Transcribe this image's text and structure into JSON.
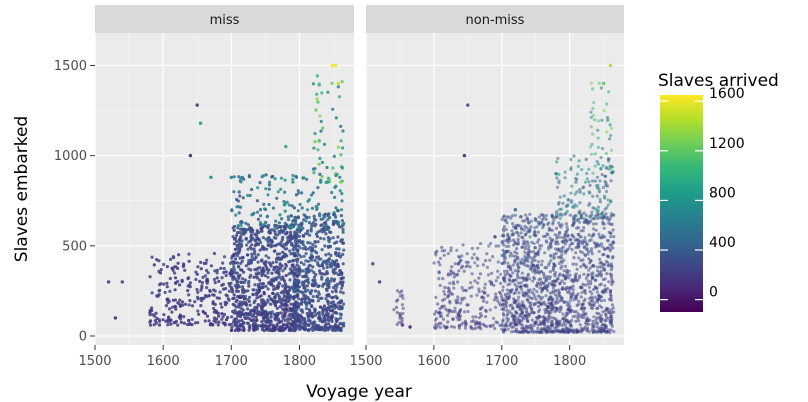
{
  "chart_data": {
    "type": "scatter",
    "xlabel": "Voyage year",
    "ylabel": "Slaves embarked",
    "xlim": [
      1500,
      1880
    ],
    "ylim": [
      -50,
      1680
    ],
    "x_ticks": [
      1500,
      1600,
      1700,
      1800
    ],
    "y_ticks": [
      0,
      500,
      1000,
      1500
    ],
    "x_tick_labels": [
      "1500",
      "1600",
      "1700",
      "1800"
    ],
    "y_tick_labels": [
      "0",
      "500",
      "1000",
      "1500"
    ],
    "grid": true,
    "facets": [
      "miss",
      "non-miss"
    ],
    "color_scale": {
      "title": "Slaves arrived",
      "palette": "viridis",
      "range": [
        -100,
        1650
      ],
      "breaks": [
        0,
        400,
        800,
        1200,
        1600
      ],
      "break_labels": [
        "0",
        "400",
        "800",
        "1200",
        "1600"
      ],
      "colors": [
        "#440154",
        "#482878",
        "#3e4989",
        "#31688e",
        "#26828e",
        "#1f9e89",
        "#35b779",
        "#6ece58",
        "#b5de2b",
        "#fde725"
      ],
      "legend_position": "right"
    },
    "panels": [
      {
        "name": "miss",
        "clusters": [
          {
            "x_range": [
              1580,
              1700
            ],
            "y_range": [
              60,
              460
            ],
            "count": 260,
            "mean_color_value": 190
          },
          {
            "x_range": [
              1700,
              1800
            ],
            "y_range": [
              30,
              620
            ],
            "count": 900,
            "mean_color_value": 230
          },
          {
            "x_range": [
              1790,
              1865
            ],
            "y_range": [
              30,
              680
            ],
            "count": 650,
            "mean_color_value": 280
          },
          {
            "x_range": [
              1700,
              1865
            ],
            "y_range": [
              600,
              900
            ],
            "count": 160,
            "mean_color_value": 560
          },
          {
            "x_range": [
              1820,
              1865
            ],
            "y_range": [
              850,
              1450
            ],
            "count": 60,
            "mean_color_value": 930
          }
        ],
        "points": [
          {
            "x": 1650,
            "y": 1280,
            "c": 150
          },
          {
            "x": 1655,
            "y": 1180,
            "c": 850
          },
          {
            "x": 1640,
            "y": 1000,
            "c": 50
          },
          {
            "x": 1780,
            "y": 1050,
            "c": 950
          },
          {
            "x": 1848,
            "y": 1500,
            "c": 1600
          },
          {
            "x": 1853,
            "y": 1500,
            "c": 1600
          },
          {
            "x": 1857,
            "y": 1400,
            "c": 1500
          },
          {
            "x": 1520,
            "y": 300,
            "c": 200
          },
          {
            "x": 1530,
            "y": 100,
            "c": 100
          },
          {
            "x": 1540,
            "y": 300,
            "c": 250
          },
          {
            "x": 1670,
            "y": 880,
            "c": 700
          },
          {
            "x": 1700,
            "y": 880,
            "c": 650
          }
        ]
      },
      {
        "name": "non-miss",
        "clusters": [
          {
            "x_range": [
              1540,
              1555
            ],
            "y_range": [
              60,
              260
            ],
            "count": 25,
            "mean_color_value": 190
          },
          {
            "x_range": [
              1600,
              1700
            ],
            "y_range": [
              40,
              520
            ],
            "count": 260,
            "mean_color_value": 220
          },
          {
            "x_range": [
              1700,
              1865
            ],
            "y_range": [
              20,
              680
            ],
            "count": 1400,
            "mean_color_value": 240
          },
          {
            "x_range": [
              1780,
              1865
            ],
            "y_range": [
              650,
              1000
            ],
            "count": 140,
            "mean_color_value": 560
          },
          {
            "x_range": [
              1830,
              1865
            ],
            "y_range": [
              900,
              1450
            ],
            "count": 45,
            "mean_color_value": 900
          }
        ],
        "points": [
          {
            "x": 1650,
            "y": 1280,
            "c": 250
          },
          {
            "x": 1645,
            "y": 1000,
            "c": 100
          },
          {
            "x": 1860,
            "y": 1500,
            "c": 1400
          },
          {
            "x": 1850,
            "y": 1400,
            "c": 1200
          },
          {
            "x": 1510,
            "y": 400,
            "c": 250
          },
          {
            "x": 1520,
            "y": 300,
            "c": 250
          },
          {
            "x": 1565,
            "y": 50,
            "c": 50
          },
          {
            "x": 1690,
            "y": 550,
            "c": 300
          },
          {
            "x": 1720,
            "y": 700,
            "c": 500
          },
          {
            "x": 1780,
            "y": 900,
            "c": 700
          }
        ]
      }
    ]
  }
}
